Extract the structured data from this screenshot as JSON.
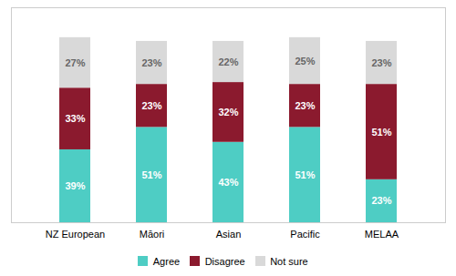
{
  "chart_data": {
    "type": "bar",
    "stacked": true,
    "categories": [
      "NZ European",
      "Māori",
      "Asian",
      "Pacific",
      "MELAA"
    ],
    "series": [
      {
        "name": "Agree",
        "color": "#4ecdc4",
        "values": [
          39,
          51,
          43,
          51,
          23
        ],
        "value_labels": [
          "39%",
          "51%",
          "43%",
          "51%",
          "23%"
        ]
      },
      {
        "name": "Disagree",
        "color": "#8b1a2e",
        "values": [
          33,
          23,
          32,
          23,
          51
        ],
        "value_labels": [
          "33%",
          "23%",
          "32%",
          "23%",
          "51%"
        ]
      },
      {
        "name": "Not sure",
        "color": "#d9d9d9",
        "values": [
          27,
          23,
          22,
          25,
          23
        ],
        "value_labels": [
          "27%",
          "23%",
          "22%",
          "25%",
          "23%"
        ]
      }
    ],
    "ylim": [
      0,
      115
    ],
    "yticks": [],
    "grid": false,
    "tick_labels": "x",
    "data_labels": true,
    "legend": "bottom"
  }
}
